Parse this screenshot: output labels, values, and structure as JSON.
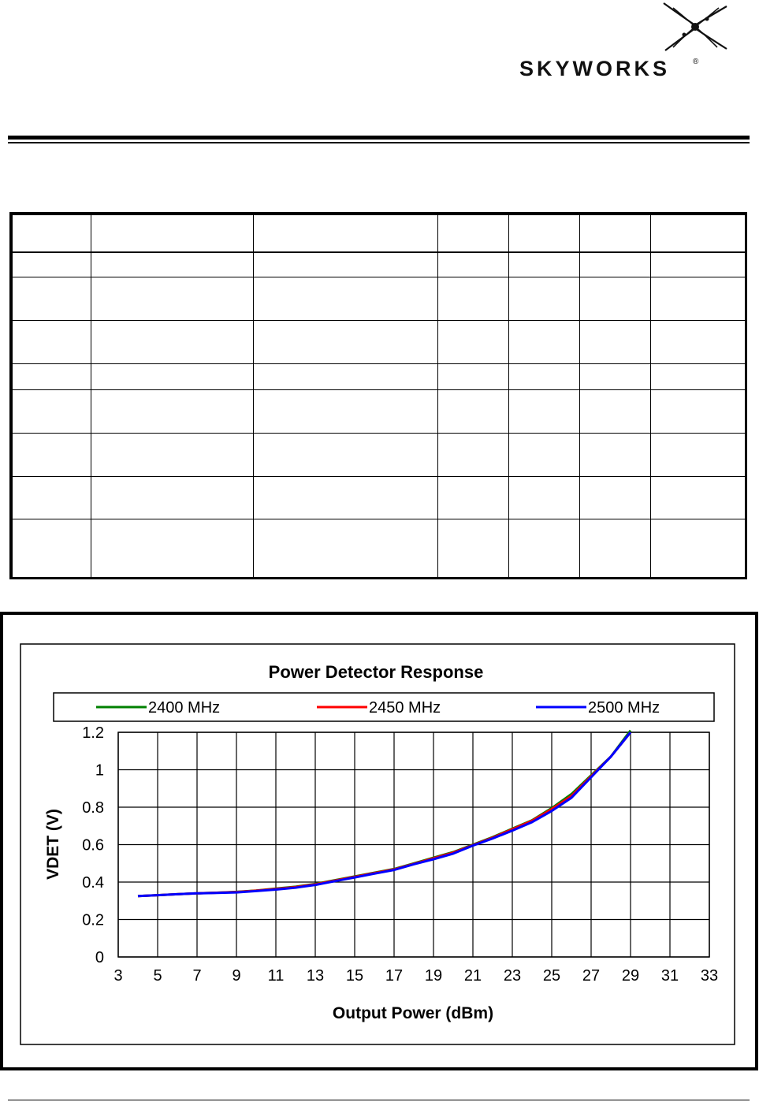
{
  "logo": {
    "text": "SKYWORKS",
    "registered": "®"
  },
  "table": {
    "rows": 9
  },
  "chart_data": {
    "type": "line",
    "title": "Power Detector Response",
    "xlabel": "Output Power (dBm)",
    "ylabel": "VDET (V)",
    "xlim": [
      3,
      33
    ],
    "ylim": [
      0,
      1.2
    ],
    "xticks": [
      "3",
      "5",
      "7",
      "9",
      "11",
      "13",
      "15",
      "17",
      "19",
      "21",
      "23",
      "25",
      "27",
      "29",
      "31",
      "33"
    ],
    "yticks": [
      "0",
      "0.2",
      "0.4",
      "0.6",
      "0.8",
      "1",
      "1.2"
    ],
    "grid": true,
    "legend_position": "top",
    "series": [
      {
        "name": "2400 MHz",
        "color": "#008000",
        "x": [
          4,
          5,
          6,
          7,
          8,
          9,
          10,
          11,
          12,
          13,
          14,
          15,
          16,
          17,
          18,
          19,
          20,
          21,
          22,
          23,
          24,
          25,
          26,
          27,
          28,
          29
        ],
        "y": [
          0.325,
          0.33,
          0.335,
          0.34,
          0.343,
          0.348,
          0.355,
          0.365,
          0.375,
          0.39,
          0.41,
          0.43,
          0.45,
          0.47,
          0.5,
          0.53,
          0.56,
          0.6,
          0.64,
          0.685,
          0.73,
          0.795,
          0.87,
          0.97,
          1.07,
          1.21
        ]
      },
      {
        "name": "2450 MHz",
        "color": "#ff0000",
        "x": [
          4,
          5,
          6,
          7,
          8,
          9,
          10,
          11,
          12,
          13,
          14,
          15,
          16,
          17,
          18,
          19,
          20,
          21,
          22,
          23,
          24,
          25,
          26,
          27,
          28,
          29
        ],
        "y": [
          0.325,
          0.33,
          0.335,
          0.34,
          0.343,
          0.347,
          0.354,
          0.363,
          0.373,
          0.388,
          0.408,
          0.428,
          0.448,
          0.468,
          0.497,
          0.527,
          0.557,
          0.597,
          0.637,
          0.682,
          0.727,
          0.79,
          0.86,
          0.965,
          1.07,
          1.2
        ]
      },
      {
        "name": "2500 MHz",
        "color": "#0000ff",
        "x": [
          4,
          5,
          6,
          7,
          8,
          9,
          10,
          11,
          12,
          13,
          14,
          15,
          16,
          17,
          18,
          19,
          20,
          21,
          22,
          23,
          24,
          25,
          26,
          27,
          28,
          29
        ],
        "y": [
          0.325,
          0.33,
          0.335,
          0.34,
          0.342,
          0.345,
          0.352,
          0.36,
          0.37,
          0.385,
          0.405,
          0.425,
          0.445,
          0.465,
          0.495,
          0.522,
          0.552,
          0.595,
          0.633,
          0.675,
          0.72,
          0.78,
          0.85,
          0.96,
          1.07,
          1.2
        ]
      }
    ]
  }
}
